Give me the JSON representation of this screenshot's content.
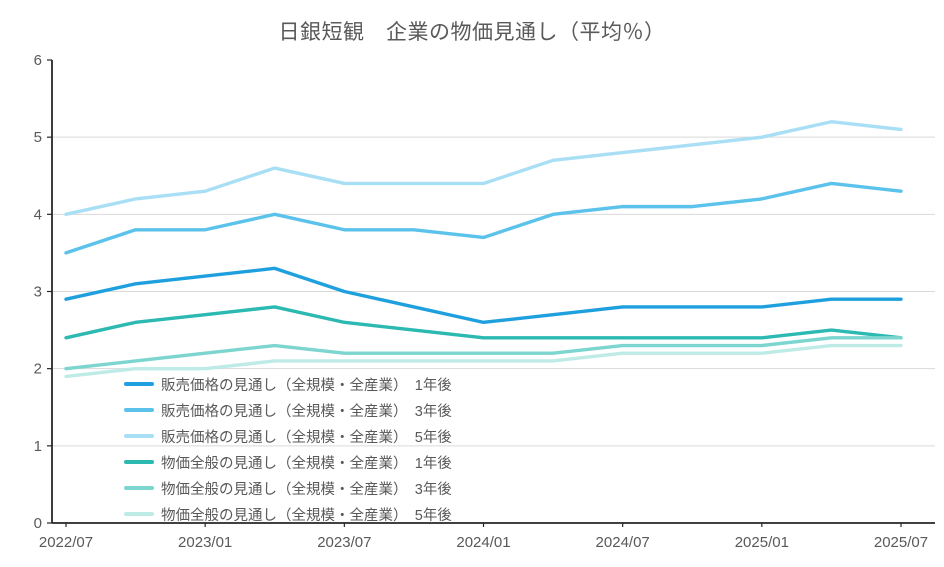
{
  "title": "日銀短観　企業の物価見通し（平均％）",
  "colors": {
    "background": "#FFFFFF",
    "title_text": "#595959",
    "axis_text": "#595959",
    "axis_line": "#262626",
    "gridline": "#D9D9D9"
  },
  "chart_data": {
    "type": "line",
    "title": "日銀短観　企業の物価見通し（平均％）",
    "x": [
      "2022/07",
      "2022/10",
      "2023/01",
      "2023/04",
      "2023/07",
      "2023/10",
      "2024/01",
      "2024/04",
      "2024/07",
      "2024/10",
      "2025/01",
      "2025/04",
      "2025/07"
    ],
    "x_tick_labels": [
      "2022/07",
      "2023/01",
      "2023/07",
      "2024/01",
      "2024/07",
      "2025/01",
      "2025/07"
    ],
    "xlabel": "",
    "ylabel": "",
    "ylim": [
      0,
      6
    ],
    "yticks": [
      0,
      1,
      2,
      3,
      4,
      5,
      6
    ],
    "grid": true,
    "legend_position": "inside-bottom-left",
    "series": [
      {
        "name": "販売価格の見通し（全規模・全産業）　1年後",
        "color": "#1FA0DE",
        "values": [
          2.9,
          3.1,
          3.2,
          3.3,
          3.0,
          2.8,
          2.6,
          2.7,
          2.8,
          2.8,
          2.8,
          2.9,
          2.9
        ]
      },
      {
        "name": "販売価格の見通し（全規模・全産業）　3年後",
        "color": "#5BC2EB",
        "values": [
          3.5,
          3.8,
          3.8,
          4.0,
          3.8,
          3.8,
          3.7,
          4.0,
          4.1,
          4.1,
          4.2,
          4.4,
          4.3
        ]
      },
      {
        "name": "販売価格の見通し（全規模・全産業）　5年後",
        "color": "#A9DFF5",
        "values": [
          4.0,
          4.2,
          4.3,
          4.6,
          4.4,
          4.4,
          4.4,
          4.7,
          4.8,
          4.9,
          5.0,
          5.2,
          5.1
        ]
      },
      {
        "name": "物価全般の見通し（全規模・全産業）　1年後",
        "color": "#2CB9B1",
        "values": [
          2.4,
          2.6,
          2.7,
          2.8,
          2.6,
          2.5,
          2.4,
          2.4,
          2.4,
          2.4,
          2.4,
          2.5,
          2.4
        ]
      },
      {
        "name": "物価全般の見通し（全規模・全産業）　3年後",
        "color": "#7DD5CF",
        "values": [
          2.0,
          2.1,
          2.2,
          2.3,
          2.2,
          2.2,
          2.2,
          2.2,
          2.3,
          2.3,
          2.3,
          2.4,
          2.4
        ]
      },
      {
        "name": "物価全般の見通し（全規模・全産業）　5年後",
        "color": "#BFEBE7",
        "values": [
          1.9,
          2.0,
          2.0,
          2.1,
          2.1,
          2.1,
          2.1,
          2.1,
          2.2,
          2.2,
          2.2,
          2.3,
          2.3
        ]
      }
    ]
  }
}
